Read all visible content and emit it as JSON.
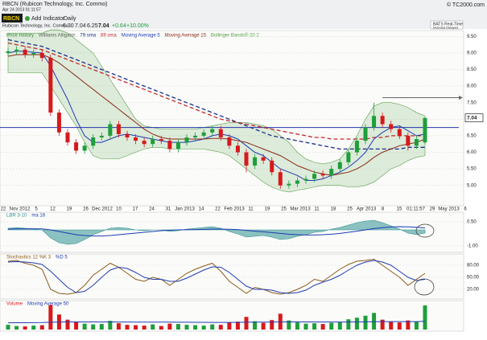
{
  "header": {
    "title": "RBCN (Rubicon Technology, Inc. Commo)",
    "timestamp": "Apr 24 2013 01:11:57",
    "copyright": "© TC2000.com"
  },
  "toolbar": {
    "symbol": "RBCN",
    "add_indicator": "Add Indicator",
    "period": "Daily",
    "company": "Rubicon Technology, Inc. Commo",
    "open": "6.30",
    "high": "7.04",
    "low": "6.25",
    "close": "7.04",
    "change": "+0.64",
    "change_pct": "+10.00%",
    "feed": "BATS Real-Time",
    "feed_note": "Included Delayed"
  },
  "chart_data": [
    {
      "type": "candlestick",
      "legend_extra": [
        {
          "name": "Price History",
          "color": "#2e7d32"
        },
        {
          "name": "Williams Alligator",
          "color": "#555555"
        }
      ],
      "x_labels": [
        "22",
        "Nov 2012",
        "5",
        "12",
        "19",
        "26",
        "Dec 2012",
        "10",
        "17",
        "24",
        "31",
        "Jan 2013",
        "14",
        "22",
        "Feb 2013",
        "11",
        "19",
        "25",
        "Mar 2013",
        "11",
        "18",
        "25",
        "Apr 2013",
        "8",
        "15",
        "01:11:57",
        "29",
        "May 2013",
        "6"
      ],
      "ylim": [
        4.75,
        9.75
      ],
      "yticks": [
        {
          "value": 5,
          "label": "5.00"
        },
        {
          "value": 5.5,
          "label": "5.50"
        },
        {
          "value": 6,
          "label": "6.00"
        },
        {
          "value": 6.5,
          "label": "6.50"
        },
        {
          "value": 7,
          "label": "7.00"
        },
        {
          "value": 7.5,
          "label": "7.50"
        },
        {
          "value": 8,
          "label": "8.00"
        },
        {
          "value": 8.5,
          "label": "8.50"
        },
        {
          "value": 9,
          "label": "9.00"
        },
        {
          "value": 9.5,
          "label": "9.50"
        }
      ],
      "up_color": "#1e9e3a",
      "down_color": "#d7191c",
      "open": [
        9.0,
        9.05,
        9.1,
        8.95,
        9.0,
        8.85,
        7.2,
        6.6,
        6.3,
        6.05,
        6.2,
        6.45,
        6.5,
        6.85,
        6.55,
        6.45,
        6.35,
        6.25,
        6.4,
        6.35,
        6.1,
        6.3,
        6.45,
        6.5,
        6.6,
        6.7,
        6.45,
        6.2,
        6.0,
        5.6,
        5.85,
        5.75,
        5.4,
        5.0,
        5.05,
        5.15,
        5.2,
        5.35,
        5.3,
        5.5,
        5.7,
        6.0,
        6.35,
        6.75,
        7.1,
        6.85,
        6.7,
        6.5,
        6.2,
        6.3
      ],
      "high": [
        9.15,
        9.2,
        9.2,
        9.1,
        9.1,
        8.95,
        7.3,
        6.7,
        6.4,
        6.3,
        6.55,
        6.6,
        6.95,
        6.95,
        6.65,
        6.55,
        6.45,
        6.5,
        6.5,
        6.45,
        6.4,
        6.55,
        6.6,
        6.7,
        6.8,
        6.8,
        6.55,
        6.3,
        6.1,
        5.95,
        5.95,
        5.85,
        5.5,
        5.15,
        5.25,
        5.3,
        5.45,
        5.45,
        5.6,
        5.8,
        6.1,
        6.45,
        6.85,
        7.5,
        7.2,
        6.95,
        6.8,
        6.6,
        6.5,
        7.04
      ],
      "low": [
        8.9,
        8.95,
        8.85,
        8.85,
        8.75,
        7.1,
        6.5,
        6.2,
        5.95,
        5.95,
        6.1,
        6.35,
        6.4,
        6.45,
        6.35,
        6.25,
        6.15,
        6.15,
        6.25,
        6.0,
        6.0,
        6.2,
        6.35,
        6.4,
        6.5,
        6.35,
        6.1,
        5.9,
        5.4,
        5.5,
        5.65,
        5.3,
        4.9,
        4.9,
        4.95,
        5.05,
        5.1,
        5.2,
        5.2,
        5.4,
        5.6,
        5.9,
        6.25,
        6.65,
        6.75,
        6.6,
        6.4,
        6.05,
        6.1,
        6.25
      ],
      "close": [
        9.05,
        9.1,
        8.95,
        9.0,
        8.85,
        7.2,
        6.6,
        6.3,
        6.05,
        6.2,
        6.45,
        6.5,
        6.85,
        6.55,
        6.45,
        6.35,
        6.25,
        6.4,
        6.35,
        6.1,
        6.3,
        6.45,
        6.5,
        6.6,
        6.7,
        6.45,
        6.2,
        6.0,
        5.6,
        5.85,
        5.75,
        5.4,
        5.0,
        5.05,
        5.15,
        5.2,
        5.35,
        5.3,
        5.5,
        5.7,
        6.0,
        6.35,
        6.75,
        7.1,
        6.85,
        6.7,
        6.5,
        6.2,
        6.4,
        7.04
      ],
      "series": [
        {
          "name": "79 sma",
          "color": "#1b2c8c",
          "style": "dash",
          "values": [
            9.4,
            9.35,
            9.3,
            9.25,
            9.2,
            9.1,
            9.0,
            8.9,
            8.8,
            8.7,
            8.6,
            8.5,
            8.4,
            8.3,
            8.2,
            8.1,
            8.0,
            7.9,
            7.8,
            7.7,
            7.6,
            7.5,
            7.4,
            7.3,
            7.2,
            7.1,
            7.0,
            6.9,
            6.8,
            6.7,
            6.6,
            6.5,
            6.45,
            6.4,
            6.35,
            6.3,
            6.25,
            6.2,
            6.15,
            6.1,
            6.1,
            6.1,
            6.1,
            6.1,
            6.1,
            6.1,
            6.1,
            6.15,
            6.15,
            6.15
          ]
        },
        {
          "name": "89 sma",
          "color": "#c0282d",
          "style": "dash",
          "values": [
            9.3,
            9.25,
            9.2,
            9.15,
            9.1,
            9.0,
            8.9,
            8.8,
            8.7,
            8.6,
            8.5,
            8.4,
            8.3,
            8.2,
            8.1,
            8.0,
            7.9,
            7.8,
            7.7,
            7.6,
            7.5,
            7.4,
            7.3,
            7.2,
            7.1,
            7.0,
            6.95,
            6.9,
            6.85,
            6.8,
            6.75,
            6.7,
            6.65,
            6.6,
            6.55,
            6.5,
            6.45,
            6.45,
            6.4,
            6.4,
            6.4,
            6.4,
            6.4,
            6.45,
            6.45,
            6.5,
            6.5,
            6.5,
            6.5,
            6.5
          ]
        },
        {
          "name": "Moving Average 5",
          "color": "#1f3bb3",
          "style": "line",
          "values": [
            9.0,
            9.05,
            9.05,
            9.02,
            9.0,
            8.6,
            8.1,
            7.6,
            7.0,
            6.5,
            6.3,
            6.3,
            6.4,
            6.5,
            6.55,
            6.5,
            6.45,
            6.4,
            6.35,
            6.3,
            6.3,
            6.3,
            6.35,
            6.4,
            6.5,
            6.55,
            6.5,
            6.4,
            6.2,
            6.0,
            5.9,
            5.7,
            5.5,
            5.4,
            5.3,
            5.15,
            5.15,
            5.2,
            5.3,
            5.4,
            5.55,
            5.75,
            6.0,
            6.4,
            6.6,
            6.75,
            6.8,
            6.65,
            6.5,
            6.55
          ]
        },
        {
          "name": "Moving Average 15",
          "color": "#8b2a1a",
          "style": "line",
          "values": [
            8.9,
            8.95,
            8.95,
            8.95,
            8.95,
            8.85,
            8.7,
            8.5,
            8.3,
            8.1,
            7.9,
            7.7,
            7.5,
            7.3,
            7.1,
            6.9,
            6.7,
            6.55,
            6.45,
            6.4,
            6.4,
            6.4,
            6.4,
            6.4,
            6.42,
            6.42,
            6.4,
            6.35,
            6.3,
            6.2,
            6.1,
            6.0,
            5.9,
            5.75,
            5.6,
            5.5,
            5.4,
            5.35,
            5.3,
            5.35,
            5.4,
            5.5,
            5.65,
            5.85,
            6.0,
            6.1,
            6.2,
            6.25,
            6.3,
            6.4
          ]
        }
      ],
      "bands": {
        "name": "Bollinger Bands® 20 2",
        "color": "#5a9e4a",
        "upper": [
          9.6,
          9.6,
          9.6,
          9.6,
          9.6,
          9.7,
          9.7,
          9.6,
          9.4,
          9.2,
          9.0,
          8.6,
          8.2,
          7.8,
          7.4,
          7.0,
          6.8,
          6.75,
          6.7,
          6.7,
          6.7,
          6.7,
          6.7,
          6.75,
          6.8,
          6.85,
          6.9,
          6.9,
          6.9,
          6.85,
          6.8,
          6.7,
          6.5,
          6.3,
          6.0,
          5.8,
          5.7,
          5.65,
          5.7,
          5.8,
          6.1,
          6.5,
          7.0,
          7.4,
          7.5,
          7.5,
          7.45,
          7.35,
          7.2,
          7.1
        ],
        "lower": [
          8.4,
          8.4,
          8.4,
          8.4,
          8.4,
          8.0,
          7.6,
          7.2,
          6.8,
          6.3,
          5.9,
          5.8,
          5.8,
          5.8,
          5.9,
          6.0,
          6.1,
          6.15,
          6.15,
          6.1,
          6.1,
          6.1,
          6.1,
          6.1,
          6.05,
          6.0,
          5.9,
          5.7,
          5.5,
          5.3,
          5.1,
          4.95,
          4.85,
          4.8,
          4.85,
          4.9,
          4.95,
          5.0,
          5.0,
          5.0,
          4.95,
          4.95,
          5.0,
          5.1,
          5.3,
          5.5,
          5.6,
          5.75,
          5.85,
          5.9
        ]
      },
      "hlines": [
        {
          "value": 6.75,
          "color": "#2233aa"
        },
        {
          "value": 7.65,
          "color": "#666666"
        }
      ]
    },
    {
      "type": "oscillator",
      "ylim": [
        -1.3,
        0.8
      ],
      "yticks": [
        {
          "value": 0.5,
          "label": "0.50"
        },
        {
          "value": -1,
          "label": "-1.00"
        }
      ],
      "series": [
        {
          "name": "LBR 3-10",
          "color": "#2f8f8f",
          "style": "area",
          "values": [
            0.1,
            0.15,
            0.1,
            0.05,
            0.0,
            -0.5,
            -0.8,
            -0.9,
            -0.85,
            -0.6,
            -0.3,
            -0.1,
            0.1,
            0.15,
            0.1,
            0.0,
            -0.05,
            0.0,
            0.0,
            -0.1,
            -0.05,
            0.05,
            0.1,
            0.15,
            0.2,
            0.1,
            -0.1,
            -0.25,
            -0.45,
            -0.4,
            -0.35,
            -0.45,
            -0.6,
            -0.55,
            -0.4,
            -0.3,
            -0.15,
            -0.1,
            0.05,
            0.15,
            0.3,
            0.45,
            0.55,
            0.6,
            0.45,
            0.25,
            0.05,
            -0.2,
            -0.3,
            -0.2
          ]
        },
        {
          "name": "ma 16",
          "color": "#1f3bb3",
          "style": "line",
          "values": [
            0.05,
            0.06,
            0.07,
            0.07,
            0.06,
            0.0,
            -0.1,
            -0.2,
            -0.3,
            -0.35,
            -0.38,
            -0.38,
            -0.35,
            -0.3,
            -0.25,
            -0.2,
            -0.15,
            -0.1,
            -0.05,
            -0.02,
            0.0,
            0.01,
            0.02,
            0.03,
            0.05,
            0.05,
            0.04,
            0.02,
            -0.03,
            -0.08,
            -0.12,
            -0.17,
            -0.22,
            -0.27,
            -0.3,
            -0.32,
            -0.32,
            -0.3,
            -0.27,
            -0.22,
            -0.15,
            -0.08,
            0.0,
            0.08,
            0.14,
            0.18,
            0.2,
            0.19,
            0.16,
            0.12
          ]
        }
      ]
    },
    {
      "type": "line",
      "ylim": [
        0,
        100
      ],
      "yticks": [
        {
          "value": 20,
          "label": "20.00"
        },
        {
          "value": 50,
          "label": "50.00"
        },
        {
          "value": 80,
          "label": "80.00"
        }
      ],
      "series": [
        {
          "name": "Stochastics 12 %K 3",
          "color": "#8b5a1a",
          "style": "line",
          "values": [
            90,
            92,
            85,
            80,
            70,
            20,
            10,
            8,
            12,
            30,
            55,
            70,
            85,
            75,
            60,
            45,
            40,
            50,
            45,
            30,
            45,
            60,
            70,
            78,
            85,
            65,
            40,
            25,
            10,
            25,
            20,
            12,
            8,
            12,
            20,
            30,
            45,
            40,
            55,
            70,
            82,
            90,
            92,
            95,
            80,
            65,
            50,
            30,
            45,
            60
          ]
        },
        {
          "name": "%D 5",
          "color": "#1f3bb3",
          "style": "line",
          "values": [
            88,
            89,
            88,
            86,
            82,
            65,
            45,
            25,
            12,
            15,
            30,
            50,
            68,
            75,
            72,
            62,
            50,
            45,
            45,
            40,
            40,
            48,
            58,
            68,
            76,
            75,
            62,
            45,
            28,
            20,
            20,
            18,
            12,
            10,
            12,
            18,
            30,
            38,
            45,
            55,
            68,
            80,
            88,
            92,
            88,
            80,
            65,
            50,
            42,
            45
          ]
        }
      ]
    },
    {
      "type": "bar",
      "ylim": [
        0,
        650
      ],
      "yticks": [],
      "series": [
        {
          "name": "Volume",
          "color": "#d7191c",
          "style": "bar",
          "values": [
            120,
            90,
            80,
            100,
            110,
            620,
            380,
            250,
            200,
            150,
            130,
            140,
            220,
            160,
            120,
            110,
            100,
            130,
            90,
            150,
            140,
            120,
            110,
            100,
            130,
            120,
            180,
            200,
            320,
            210,
            170,
            240,
            400,
            230,
            180,
            150,
            160,
            140,
            170,
            190,
            260,
            300,
            350,
            420,
            250,
            200,
            180,
            230,
            200,
            610
          ]
        },
        {
          "name": "Moving Average 50",
          "color": "#1f3bb3",
          "style": "line",
          "values": [
            170,
            172,
            173,
            175,
            176,
            185,
            190,
            192,
            193,
            193,
            192,
            191,
            192,
            191,
            190,
            189,
            188,
            187,
            186,
            186,
            185,
            184,
            183,
            182,
            181,
            180,
            181,
            182,
            185,
            186,
            186,
            188,
            192,
            193,
            193,
            193,
            192,
            191,
            190,
            190,
            191,
            193,
            196,
            200,
            201,
            201,
            201,
            202,
            202,
            208
          ]
        }
      ]
    }
  ]
}
